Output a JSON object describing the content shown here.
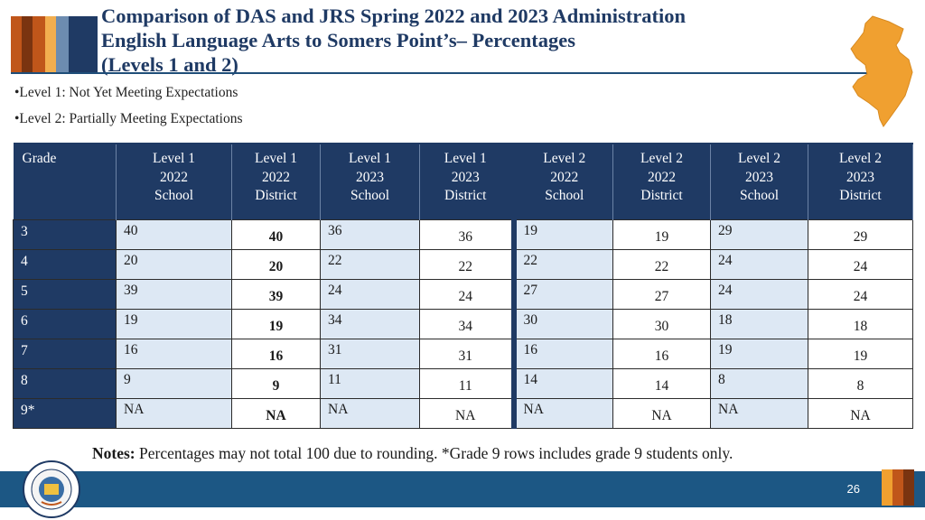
{
  "title": {
    "line1": "Comparison of DAS and JRS Spring 2022 and 2023 Administration",
    "line2": "English Language Arts to Somers Point’s– Percentages",
    "line3": "(Levels 1 and 2)"
  },
  "bullets": [
    "•Level 1: Not Yet Meeting Expectations",
    "•Level 2: Partially Meeting Expectations"
  ],
  "table": {
    "headers": [
      [
        "Grade"
      ],
      [
        "Level 1",
        "2022",
        "School"
      ],
      [
        "Level 1",
        "2022",
        "District"
      ],
      [
        "Level 1",
        "2023",
        "School"
      ],
      [
        "Level 1",
        "2023",
        "District"
      ],
      [
        "Level 2",
        "2022",
        "School"
      ],
      [
        "Level 2",
        "2022",
        "District"
      ],
      [
        "Level 2",
        "2023",
        "School"
      ],
      [
        "Level 2",
        "2023",
        "District"
      ]
    ],
    "rows": [
      [
        "3",
        "40",
        "40",
        "36",
        "36",
        "19",
        "19",
        "29",
        "29"
      ],
      [
        "4",
        "20",
        "20",
        "22",
        "22",
        "22",
        "22",
        "24",
        "24"
      ],
      [
        "5",
        "39",
        "39",
        "24",
        "24",
        "27",
        "27",
        "24",
        "24"
      ],
      [
        "6",
        "19",
        "19",
        "34",
        "34",
        "30",
        "30",
        "18",
        "18"
      ],
      [
        "7",
        "16",
        "16",
        "31",
        "31",
        "16",
        "16",
        "19",
        "19"
      ],
      [
        "8",
        "9",
        "9",
        "11",
        "11",
        "14",
        "14",
        "8",
        "8"
      ],
      [
        "9*",
        "NA",
        "NA",
        "NA",
        "NA",
        "NA",
        "NA",
        "NA",
        "NA"
      ]
    ]
  },
  "notes": {
    "label": "Notes:",
    "text": " Percentages may not total 100 due to rounding. *Grade 9 rows includes grade 9 students only."
  },
  "page_number": "26",
  "colors": {
    "navy": "#1f3a64",
    "footer": "#1c5784",
    "shade": "#dde8f4",
    "accent_orange": "#f0a030",
    "stripe_brown": "#7a3410",
    "stripe_orange": "#c0561a",
    "stripe_blue": "#6d8cb0"
  }
}
